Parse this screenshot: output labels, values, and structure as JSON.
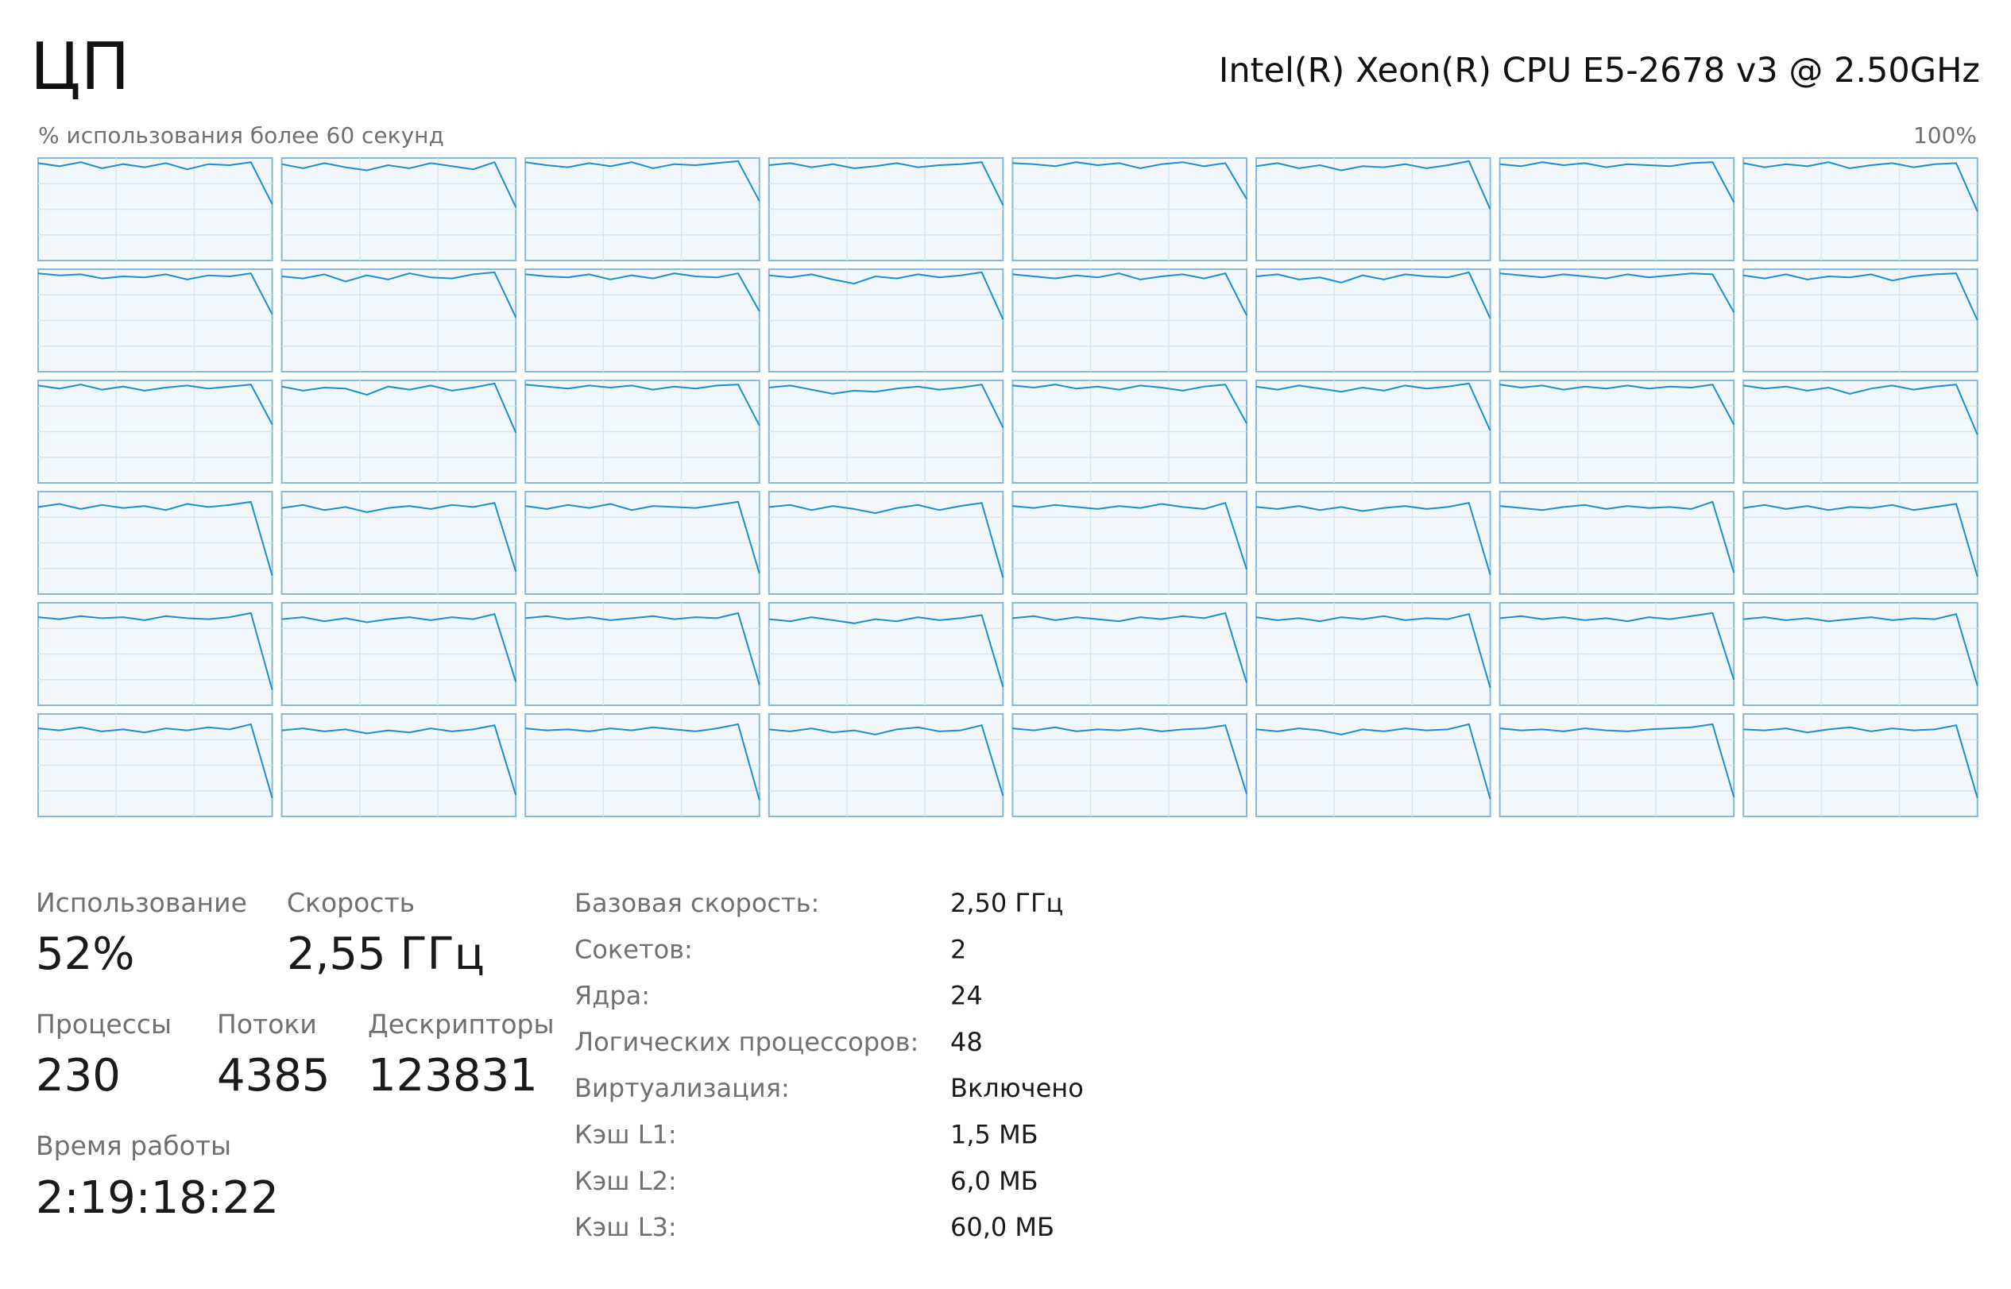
{
  "header": {
    "title": "ЦП",
    "cpu_name": "Intel(R) Xeon(R) CPU E5-2678 v3 @ 2.50GHz"
  },
  "graphs": {
    "label": "% использования более 60 секунд",
    "max_label": "100%",
    "ylim": [
      0,
      100
    ],
    "line_color": "#1a8fd0",
    "border_color": "#86b9dc",
    "fill_color": "#f1f7fb",
    "cores": [
      [
        95,
        92,
        96,
        90,
        94,
        91,
        95,
        89,
        94,
        93,
        96,
        55
      ],
      [
        94,
        90,
        95,
        91,
        88,
        93,
        90,
        95,
        92,
        89,
        96,
        52
      ],
      [
        96,
        93,
        91,
        95,
        92,
        96,
        90,
        94,
        93,
        95,
        97,
        58
      ],
      [
        93,
        95,
        91,
        94,
        90,
        92,
        95,
        91,
        93,
        94,
        96,
        54
      ],
      [
        95,
        94,
        92,
        96,
        93,
        95,
        90,
        94,
        96,
        92,
        95,
        60
      ],
      [
        92,
        95,
        90,
        93,
        88,
        92,
        91,
        94,
        90,
        93,
        97,
        50
      ],
      [
        94,
        92,
        96,
        93,
        95,
        91,
        94,
        93,
        92,
        95,
        96,
        57
      ],
      [
        95,
        91,
        94,
        92,
        96,
        90,
        93,
        95,
        91,
        94,
        95,
        48
      ],
      [
        96,
        94,
        95,
        91,
        93,
        92,
        95,
        90,
        94,
        93,
        96,
        56
      ],
      [
        93,
        91,
        95,
        88,
        94,
        90,
        96,
        92,
        91,
        95,
        97,
        53
      ],
      [
        95,
        93,
        92,
        95,
        90,
        94,
        91,
        96,
        93,
        92,
        96,
        59
      ],
      [
        94,
        92,
        95,
        90,
        86,
        93,
        91,
        95,
        92,
        94,
        97,
        51
      ],
      [
        95,
        93,
        91,
        94,
        92,
        96,
        90,
        93,
        95,
        91,
        96,
        55
      ],
      [
        93,
        95,
        90,
        92,
        87,
        94,
        90,
        95,
        93,
        92,
        97,
        52
      ],
      [
        96,
        94,
        92,
        95,
        93,
        91,
        95,
        92,
        94,
        96,
        95,
        58
      ],
      [
        94,
        91,
        95,
        90,
        93,
        92,
        95,
        89,
        93,
        95,
        96,
        50
      ],
      [
        95,
        92,
        96,
        91,
        94,
        90,
        93,
        95,
        92,
        94,
        96,
        57
      ],
      [
        94,
        90,
        93,
        92,
        86,
        94,
        91,
        95,
        90,
        93,
        97,
        49
      ],
      [
        96,
        94,
        92,
        95,
        93,
        95,
        91,
        94,
        92,
        95,
        96,
        56
      ],
      [
        93,
        95,
        91,
        87,
        90,
        89,
        92,
        94,
        91,
        93,
        96,
        54
      ],
      [
        95,
        93,
        96,
        92,
        94,
        91,
        95,
        93,
        90,
        94,
        96,
        58
      ],
      [
        94,
        91,
        95,
        92,
        89,
        93,
        90,
        95,
        92,
        94,
        97,
        51
      ],
      [
        96,
        93,
        95,
        91,
        94,
        92,
        95,
        92,
        94,
        93,
        96,
        57
      ],
      [
        95,
        92,
        94,
        90,
        93,
        87,
        92,
        95,
        91,
        94,
        96,
        47
      ],
      [
        85,
        88,
        83,
        87,
        84,
        86,
        82,
        88,
        85,
        87,
        90,
        18
      ],
      [
        84,
        87,
        82,
        85,
        80,
        84,
        86,
        83,
        87,
        85,
        89,
        22
      ],
      [
        86,
        83,
        87,
        84,
        88,
        82,
        86,
        85,
        84,
        87,
        90,
        20
      ],
      [
        85,
        87,
        82,
        86,
        83,
        79,
        84,
        87,
        82,
        86,
        89,
        16
      ],
      [
        86,
        84,
        87,
        85,
        83,
        86,
        84,
        88,
        85,
        83,
        89,
        24
      ],
      [
        85,
        83,
        86,
        82,
        85,
        81,
        84,
        86,
        83,
        85,
        89,
        19
      ],
      [
        86,
        84,
        82,
        85,
        87,
        83,
        86,
        84,
        85,
        83,
        90,
        21
      ],
      [
        84,
        87,
        83,
        86,
        82,
        85,
        84,
        87,
        82,
        85,
        88,
        17
      ],
      [
        86,
        84,
        87,
        85,
        86,
        83,
        87,
        85,
        84,
        86,
        90,
        15
      ],
      [
        84,
        86,
        82,
        85,
        81,
        84,
        86,
        83,
        86,
        84,
        89,
        23
      ],
      [
        85,
        87,
        84,
        86,
        83,
        85,
        87,
        84,
        86,
        85,
        90,
        20
      ],
      [
        84,
        82,
        86,
        83,
        80,
        84,
        82,
        86,
        83,
        85,
        88,
        18
      ],
      [
        85,
        87,
        83,
        86,
        84,
        82,
        86,
        84,
        87,
        85,
        90,
        22
      ],
      [
        86,
        83,
        85,
        82,
        86,
        84,
        87,
        83,
        85,
        84,
        89,
        17
      ],
      [
        85,
        87,
        84,
        86,
        83,
        85,
        82,
        86,
        84,
        87,
        90,
        25
      ],
      [
        84,
        86,
        83,
        85,
        82,
        84,
        86,
        83,
        85,
        84,
        89,
        19
      ],
      [
        86,
        84,
        87,
        83,
        85,
        82,
        86,
        84,
        87,
        85,
        90,
        18
      ],
      [
        84,
        86,
        83,
        85,
        81,
        84,
        82,
        86,
        83,
        85,
        89,
        21
      ],
      [
        86,
        84,
        85,
        83,
        86,
        84,
        87,
        85,
        83,
        86,
        90,
        16
      ],
      [
        85,
        83,
        86,
        82,
        84,
        80,
        85,
        87,
        83,
        84,
        89,
        20
      ],
      [
        86,
        84,
        87,
        83,
        85,
        84,
        86,
        83,
        85,
        86,
        89,
        22
      ],
      [
        85,
        83,
        86,
        84,
        80,
        85,
        83,
        86,
        84,
        85,
        90,
        17
      ],
      [
        86,
        84,
        85,
        83,
        86,
        84,
        83,
        85,
        86,
        87,
        90,
        19
      ],
      [
        85,
        84,
        86,
        82,
        85,
        87,
        83,
        86,
        84,
        85,
        89,
        18
      ]
    ]
  },
  "stats": {
    "utilization": {
      "label": "Использование",
      "value": "52%"
    },
    "speed": {
      "label": "Скорость",
      "value": "2,55 ГГц"
    },
    "processes": {
      "label": "Процессы",
      "value": "230"
    },
    "threads": {
      "label": "Потоки",
      "value": "4385"
    },
    "handles": {
      "label": "Дескрипторы",
      "value": "123831"
    },
    "uptime": {
      "label": "Время работы",
      "value": "2:19:18:22"
    }
  },
  "details": [
    [
      "Базовая скорость:",
      "2,50 ГГц"
    ],
    [
      "Сокетов:",
      "2"
    ],
    [
      "Ядра:",
      "24"
    ],
    [
      "Логических процессоров:",
      "48"
    ],
    [
      "Виртуализация:",
      "Включено"
    ],
    [
      "Кэш L1:",
      "1,5 МБ"
    ],
    [
      "Кэш L2:",
      "6,0 МБ"
    ],
    [
      "Кэш L3:",
      "60,0 МБ"
    ]
  ]
}
